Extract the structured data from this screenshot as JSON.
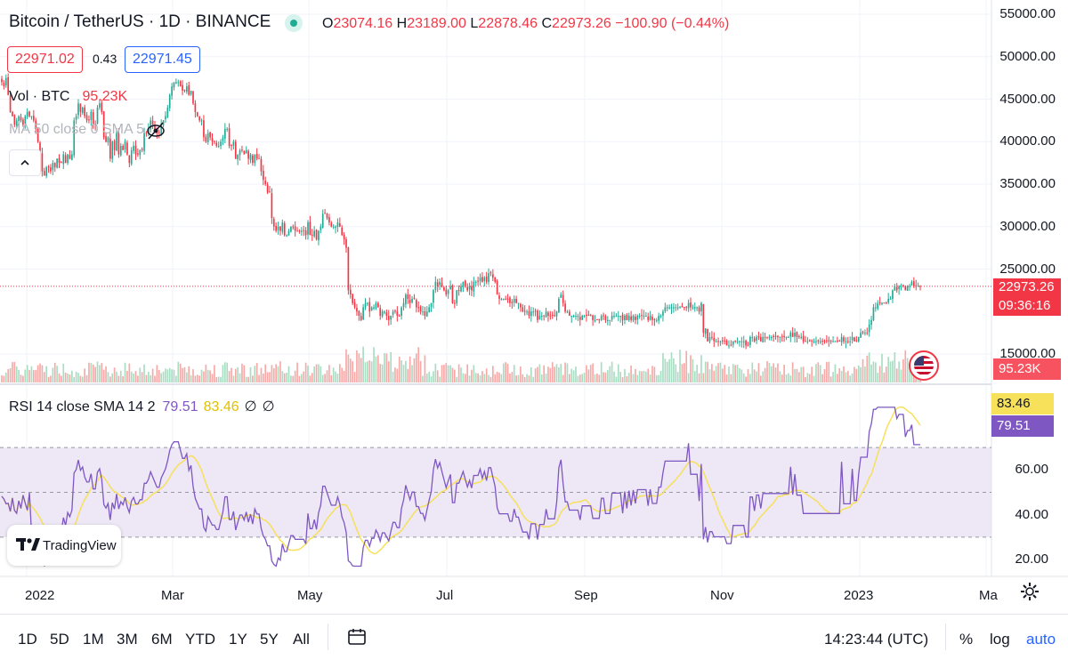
{
  "header": {
    "symbol": "Bitcoin / TetherUS · 1D · BINANCE",
    "o_label": "O",
    "o": "23074.16",
    "h_label": "H",
    "h": "23189.00",
    "l_label": "L",
    "l": "22878.46",
    "c_label": "C",
    "c": "22973.26",
    "change": "−100.90 (−0.44%)"
  },
  "trade": {
    "sell_price": "22971.02",
    "spread": "0.43",
    "buy_price": "22971.45"
  },
  "volume_legend": {
    "label": "Vol · BTC",
    "value": "95.23K"
  },
  "ma_legend": {
    "label": "MA 50 close 0 SMA 5"
  },
  "rsi_legend": {
    "label": "RSI 14 close SMA 14 2",
    "rsi_value": "79.51",
    "sma_value": "83.46",
    "extra1": "∅",
    "extra2": "∅"
  },
  "price_axis": {
    "labels": [
      "55000.00",
      "50000.00",
      "45000.00",
      "40000.00",
      "35000.00",
      "30000.00",
      "25000.00",
      "15000.00"
    ]
  },
  "price_tag": {
    "price": "22973.26",
    "countdown": "09:36:16"
  },
  "volume_tag": "95.23K",
  "rsi_axis": {
    "labels": [
      "60.00",
      "40.00",
      "20.00"
    ],
    "rsi_sma_tag": "83.46",
    "rsi_tag": "79.51"
  },
  "time_axis": {
    "labels": [
      "2022",
      "Mar",
      "May",
      "Jul",
      "Sep",
      "Nov",
      "2023",
      "Ma"
    ]
  },
  "branding": {
    "name": "TradingView"
  },
  "toolbar": {
    "timeframes": [
      "1D",
      "5D",
      "1M",
      "3M",
      "6M",
      "YTD",
      "1Y",
      "5Y",
      "All"
    ],
    "clock": "14:23:44 (UTC)",
    "percent": "%",
    "log": "log",
    "auto": "auto"
  },
  "colors": {
    "up": "#22ab94",
    "down": "#f23645",
    "rsi": "#7e57c2",
    "rsi_sma": "#f7e05a",
    "band": "#ede7f6"
  },
  "icons": [
    "live-status-icon",
    "eye-off-icon",
    "collapse-chevron-icon",
    "compare-flag-icon",
    "tradingview-logo-icon",
    "date-range-icon",
    "settings-gear-icon"
  ],
  "chart_data": {
    "type": "candlestick",
    "x_start": "2022-01-01",
    "price_scale": {
      "min": 15000,
      "max": 55000
    },
    "rsi_scale": {
      "min": 20,
      "max": 80,
      "bands": [
        30,
        50,
        70
      ]
    },
    "last_close": 22973.26,
    "closes": [
      47000,
      46500,
      47500,
      45500,
      43500,
      43000,
      42000,
      42500,
      43000,
      42500,
      42000,
      43000,
      43500,
      43000,
      43000,
      42500,
      41500,
      40000,
      38500,
      36500,
      36000,
      37000,
      37000,
      36500,
      37500,
      37000,
      38000,
      37500,
      37500,
      38500,
      37500,
      38500,
      38000,
      38500,
      42500,
      43000,
      44500,
      43500,
      44000,
      43000,
      42500,
      42500,
      43500,
      42000,
      42000,
      44000,
      44500,
      43500,
      40500,
      40000,
      40500,
      38000,
      40000,
      39000,
      41000,
      38500,
      39500,
      39000,
      40000,
      38500,
      37500,
      39000,
      39500,
      38500,
      38500,
      39000,
      39000,
      41000,
      41000,
      41500,
      42500,
      42000,
      41500,
      41000,
      41000,
      42000,
      42500,
      43000,
      44000,
      45500,
      46500,
      47000,
      47000,
      47000,
      46500,
      46000,
      46000,
      46500,
      45500,
      46000,
      44500,
      43500,
      43000,
      42500,
      42500,
      40500,
      40000,
      41000,
      40500,
      40000,
      40000,
      39500,
      39500,
      40000,
      40500,
      41500,
      41500,
      39500,
      39500,
      40000,
      38000,
      38500,
      39000,
      39000,
      38500,
      39000,
      38000,
      38500,
      37500,
      38500,
      38000,
      38000,
      36500,
      35500,
      35000,
      34000,
      34000,
      31000,
      30000,
      29500,
      30000,
      29500,
      30500,
      29000,
      29000,
      29500,
      30000,
      30000,
      29500,
      29500,
      29500,
      29500,
      29500,
      29000,
      30500,
      29000,
      29000,
      29500,
      28500,
      29500,
      30000,
      31500,
      31500,
      31000,
      30500,
      30000,
      30000,
      30000,
      30500,
      30000,
      29000,
      28500,
      27500,
      22500,
      22000,
      21000,
      20500,
      20000,
      19500,
      19000,
      20500,
      21000,
      21000,
      20000,
      20500,
      20500,
      21000,
      20500,
      19500,
      20000,
      20000,
      19500,
      19000,
      19500,
      20000,
      20000,
      19500,
      19500,
      20500,
      21000,
      22000,
      21500,
      21000,
      21500,
      21500,
      20500,
      20500,
      20000,
      20000,
      19500,
      20000,
      20500,
      21000,
      22500,
      23500,
      23000,
      23500,
      23000,
      22500,
      22000,
      22500,
      23000,
      21000,
      21000,
      22500,
      22500,
      23000,
      23500,
      23000,
      22500,
      23000,
      22500,
      23500,
      23500,
      23500,
      24000,
      23500,
      24000,
      23500,
      24500,
      24500,
      24000,
      23500,
      22000,
      21500,
      21500,
      21500,
      21500,
      21500,
      21000,
      21000,
      21500,
      21000,
      21000,
      20500,
      20000,
      20000,
      20000,
      19500,
      20000,
      20000,
      20000,
      19000,
      19500,
      19500,
      19500,
      20000,
      19500,
      19500,
      19500,
      19500,
      20000,
      21500,
      22000,
      21000,
      20000,
      20000,
      19500,
      19500,
      19500,
      19500,
      19500,
      19000,
      19500,
      19500,
      19500,
      19500,
      19500,
      19000,
      19000,
      19000,
      19000,
      19500,
      19500,
      19000,
      19000,
      19000,
      19500,
      19500,
      19500,
      19500,
      19500,
      19000,
      19500,
      19000,
      19500,
      19000,
      19500,
      19000,
      19500,
      19500,
      19500,
      19500,
      19500,
      19000,
      19500,
      19000,
      19000,
      19000,
      19500,
      19500,
      20000,
      20500,
      20500,
      20500,
      20500,
      20500,
      20500,
      20500,
      20500,
      20500,
      20500,
      20500,
      21000,
      20500,
      20500,
      20500,
      20500,
      20000,
      21000,
      17500,
      18000,
      16500,
      17000,
      17000,
      16500,
      16500,
      16500,
      16500,
      16500,
      16500,
      16000,
      16000,
      16000,
      16500,
      16500,
      16500,
      16500,
      16500,
      16500,
      16000,
      16000,
      17000,
      17000,
      16500,
      17000,
      17000,
      16500,
      17000,
      17000,
      17000,
      17000,
      17000,
      17000,
      17000,
      17000,
      17000,
      17000,
      17000,
      17000,
      17000,
      17500,
      17000,
      17500,
      17000,
      17000,
      17000,
      16500,
      16500,
      16500,
      16500,
      16500,
      16500,
      16500,
      16500,
      16500,
      16500,
      16500,
      16500,
      16500,
      16500,
      16500,
      16500,
      16500,
      16500,
      17000,
      16500,
      16500,
      16500,
      16500,
      17000,
      16500,
      16500,
      17000,
      17500,
      17500,
      17500,
      17500,
      18500,
      19000,
      20500,
      20500,
      21000,
      21000,
      21000,
      21000,
      21000,
      21500,
      21500,
      22500,
      23000,
      22500,
      23000,
      23000,
      23000,
      22500,
      23000,
      23000,
      23500,
      23000,
      23000,
      23000,
      23000
    ]
  }
}
